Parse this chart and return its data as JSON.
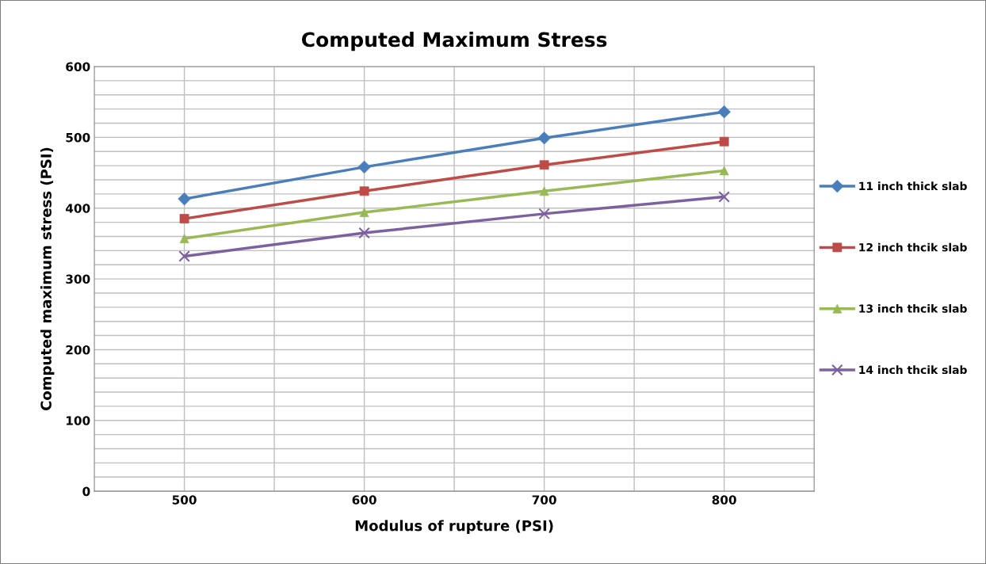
{
  "chart_data": {
    "type": "line",
    "title": "Computed Maximum Stress",
    "xlabel": "Modulus of rupture (PSI)",
    "ylabel": "Computed maximum stress (PSI)",
    "x": [
      500,
      600,
      700,
      800
    ],
    "series": [
      {
        "name": "11 inch thick slab",
        "color": "#4a7ebb",
        "marker": "diamond",
        "values": [
          413,
          458,
          499,
          536
        ]
      },
      {
        "name": "12 inch thcik slab",
        "color": "#be4b48",
        "marker": "square",
        "values": [
          385,
          424,
          461,
          494
        ]
      },
      {
        "name": "13 inch thcik slab",
        "color": "#98b954",
        "marker": "triangle",
        "values": [
          357,
          394,
          424,
          453
        ]
      },
      {
        "name": "14 inch thcik slab",
        "color": "#7d60a0",
        "marker": "cross",
        "values": [
          332,
          365,
          392,
          416
        ]
      }
    ],
    "xlim": [
      450,
      850
    ],
    "xticks": [
      500,
      {
        "value": 550,
        "label": null
      },
      600,
      {
        "value": 650,
        "label": null
      },
      700,
      {
        "value": 750,
        "label": null
      },
      800
    ],
    "ylim": [
      0,
      600
    ],
    "yticks": [
      0,
      {
        "value": 20,
        "label": null
      },
      {
        "value": 40,
        "label": null
      },
      {
        "value": 60,
        "label": null
      },
      {
        "value": 80,
        "label": null
      },
      100,
      {
        "value": 120,
        "label": null
      },
      {
        "value": 140,
        "label": null
      },
      {
        "value": 160,
        "label": null
      },
      {
        "value": 180,
        "label": null
      },
      200,
      {
        "value": 220,
        "label": null
      },
      {
        "value": 240,
        "label": null
      },
      {
        "value": 260,
        "label": null
      },
      {
        "value": 280,
        "label": null
      },
      300,
      {
        "value": 320,
        "label": null
      },
      {
        "value": 340,
        "label": null
      },
      {
        "value": 360,
        "label": null
      },
      {
        "value": 380,
        "label": null
      },
      400,
      {
        "value": 420,
        "label": null
      },
      {
        "value": 440,
        "label": null
      },
      {
        "value": 460,
        "label": null
      },
      {
        "value": 480,
        "label": null
      },
      500,
      {
        "value": 520,
        "label": null
      },
      {
        "value": 540,
        "label": null
      },
      {
        "value": 560,
        "label": null
      },
      {
        "value": 580,
        "label": null
      },
      600
    ],
    "grid": true,
    "legend": "right",
    "line_style": "solid"
  }
}
